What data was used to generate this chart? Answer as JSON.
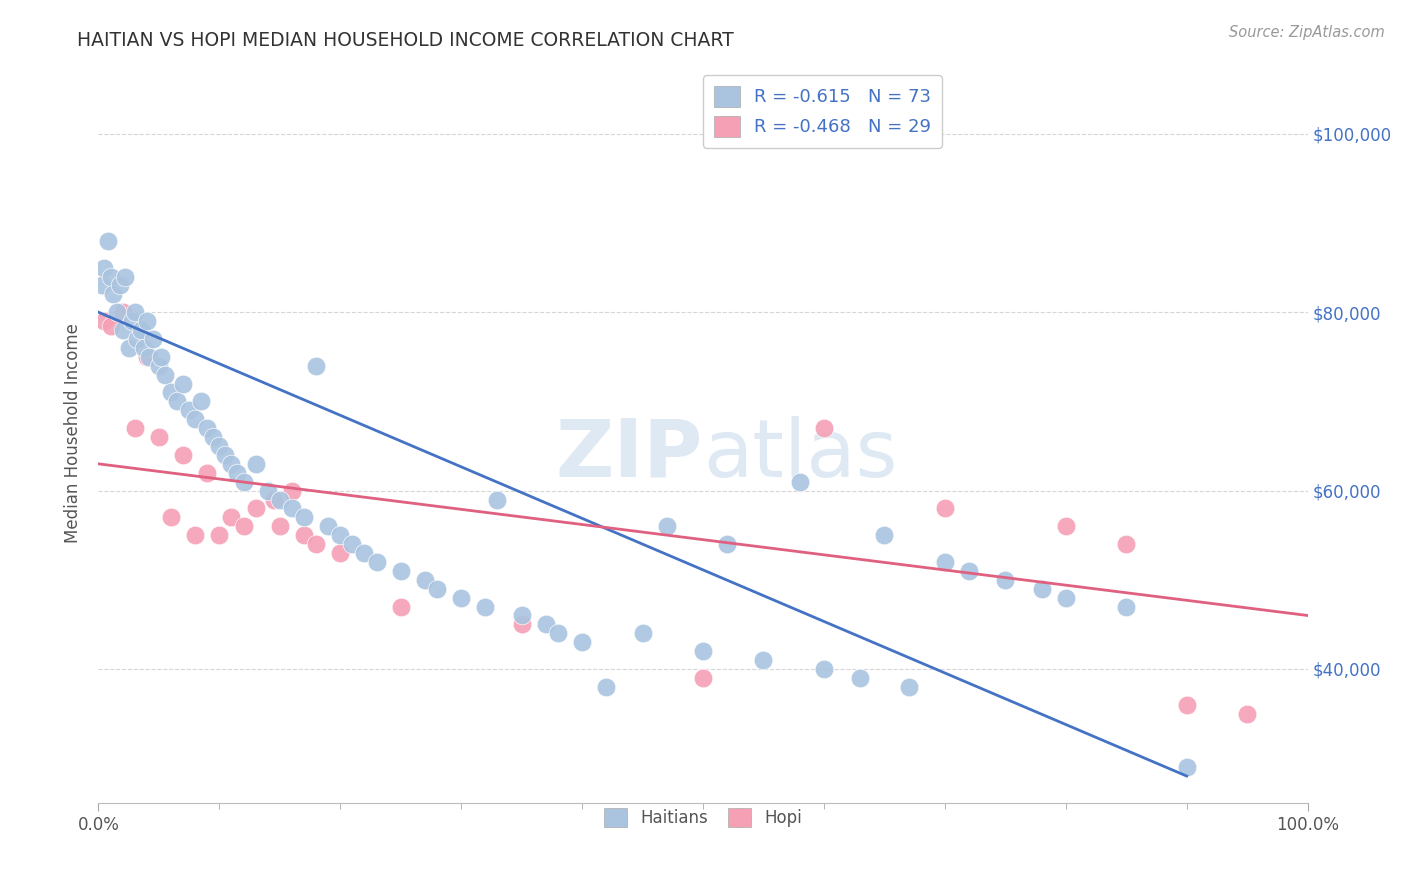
{
  "title": "HAITIAN VS HOPI MEDIAN HOUSEHOLD INCOME CORRELATION CHART",
  "source": "Source: ZipAtlas.com",
  "ylabel": "Median Household Income",
  "ytick_labels": [
    "$40,000",
    "$60,000",
    "$80,000",
    "$100,000"
  ],
  "ytick_values": [
    40000,
    60000,
    80000,
    100000
  ],
  "watermark": "ZIPatlas",
  "legend_r_haitian": "-0.615",
  "legend_n_haitian": "73",
  "legend_r_hopi": "-0.468",
  "legend_n_hopi": "29",
  "haitian_color": "#aac4e0",
  "hopi_color": "#f5a0b5",
  "haitian_line_color": "#4472c4",
  "hopi_line_color": "#e06080",
  "background_color": "#ffffff",
  "haitian_x": [
    0.3,
    0.5,
    0.8,
    1.0,
    1.2,
    1.5,
    1.8,
    2.0,
    2.2,
    2.5,
    2.8,
    3.0,
    3.2,
    3.5,
    3.8,
    4.0,
    4.2,
    4.5,
    5.0,
    5.2,
    5.5,
    6.0,
    6.5,
    7.0,
    7.5,
    8.0,
    8.5,
    9.0,
    9.5,
    10.0,
    10.5,
    11.0,
    11.5,
    12.0,
    13.0,
    14.0,
    15.0,
    16.0,
    17.0,
    18.0,
    19.0,
    20.0,
    21.0,
    22.0,
    23.0,
    25.0,
    27.0,
    28.0,
    30.0,
    32.0,
    33.0,
    35.0,
    37.0,
    38.0,
    40.0,
    42.0,
    45.0,
    47.0,
    50.0,
    52.0,
    55.0,
    58.0,
    60.0,
    63.0,
    65.0,
    67.0,
    70.0,
    72.0,
    75.0,
    78.0,
    80.0,
    85.0,
    90.0
  ],
  "haitian_y": [
    83000,
    85000,
    88000,
    84000,
    82000,
    80000,
    83000,
    78000,
    84000,
    76000,
    79000,
    80000,
    77000,
    78000,
    76000,
    79000,
    75000,
    77000,
    74000,
    75000,
    73000,
    71000,
    70000,
    72000,
    69000,
    68000,
    70000,
    67000,
    66000,
    65000,
    64000,
    63000,
    62000,
    61000,
    63000,
    60000,
    59000,
    58000,
    57000,
    74000,
    56000,
    55000,
    54000,
    53000,
    52000,
    51000,
    50000,
    49000,
    48000,
    47000,
    59000,
    46000,
    45000,
    44000,
    43000,
    38000,
    44000,
    56000,
    42000,
    54000,
    41000,
    61000,
    40000,
    39000,
    55000,
    38000,
    52000,
    51000,
    50000,
    49000,
    48000,
    47000,
    29000
  ],
  "hopi_x": [
    0.5,
    1.0,
    2.0,
    3.0,
    4.0,
    5.0,
    6.0,
    7.0,
    8.0,
    9.0,
    10.0,
    11.0,
    12.0,
    13.0,
    14.5,
    15.0,
    16.0,
    17.0,
    18.0,
    20.0,
    25.0,
    35.0,
    50.0,
    60.0,
    70.0,
    80.0,
    85.0,
    90.0,
    95.0
  ],
  "hopi_y": [
    79000,
    78500,
    80000,
    67000,
    75000,
    66000,
    57000,
    64000,
    55000,
    62000,
    55000,
    57000,
    56000,
    58000,
    59000,
    56000,
    60000,
    55000,
    54000,
    53000,
    47000,
    45000,
    39000,
    67000,
    58000,
    56000,
    54000,
    36000,
    35000
  ],
  "h_line_x0": 0,
  "h_line_y0": 80000,
  "h_line_x1": 90,
  "h_line_y1": 28000,
  "p_line_x0": 0,
  "p_line_y0": 63000,
  "p_line_x1": 100,
  "p_line_y1": 46000,
  "xlim": [
    0,
    100
  ],
  "ylim": [
    25000,
    108000
  ],
  "dot_size": 180
}
